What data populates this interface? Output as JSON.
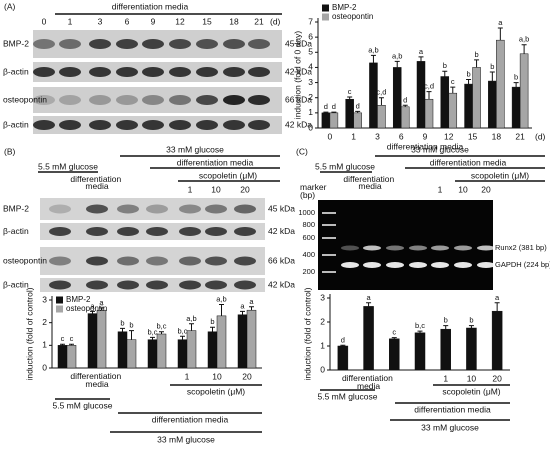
{
  "panel_a": {
    "label": "(A)",
    "header": "differentiation media",
    "lanes": [
      "0",
      "1",
      "3",
      "6",
      "9",
      "12",
      "15",
      "18",
      "21"
    ],
    "lane_unit": "(d)",
    "rows": [
      {
        "name": "BMP-2",
        "size": "45 kDa"
      },
      {
        "name": "β-actin",
        "size": "42 kDa"
      },
      {
        "name": "osteopontin",
        "size": "66 kDa"
      },
      {
        "name": "β-actin",
        "size": "42 kDa"
      }
    ]
  },
  "panel_b": {
    "label": "(B)",
    "headers": [
      "33 mM glucose",
      "5.5 mM glucose",
      "differentiation media",
      "scopoletin (μM)",
      "differentiation media",
      "1",
      "10",
      "20"
    ],
    "rows": [
      {
        "name": "BMP-2",
        "size": "45 kDa"
      },
      {
        "name": "β-actin",
        "size": "42 kDa"
      },
      {
        "name": "osteopontin",
        "size": "66 kDa"
      },
      {
        "name": "β-actin",
        "size": "42 kDa"
      }
    ]
  },
  "panel_c": {
    "label": "(C)",
    "headers": [
      "33 mM glucose",
      "5.5 mM glucose",
      "differentiation media",
      "scopoletin (μM)",
      "differentiation media",
      "1",
      "10",
      "20"
    ],
    "marker": "marker (bp)",
    "ladder": [
      "1000",
      "800",
      "600",
      "400",
      "200"
    ],
    "bands": [
      "Runx2 (381 bp)",
      "GAPDH (224 bp)"
    ]
  },
  "chart_data": [
    {
      "type": "bar",
      "ylabel": "induction (fold of 0 day)",
      "xlabel": "differentiation media",
      "x_unit": "(d)",
      "categories": [
        "0",
        "1",
        "3",
        "6",
        "9",
        "12",
        "15",
        "18",
        "21"
      ],
      "series": [
        {
          "name": "BMP-2",
          "color": "#111111",
          "values": [
            1,
            1.9,
            4.3,
            4.0,
            4.4,
            3.4,
            2.9,
            3.1,
            2.7
          ],
          "errors": [
            0.05,
            0.15,
            0.5,
            0.4,
            0.3,
            0.35,
            0.3,
            0.6,
            0.3
          ],
          "letters": [
            "d",
            "c",
            "a,b",
            "a,b",
            "a",
            "b",
            "b",
            "b",
            "b"
          ]
        },
        {
          "name": "osteopontin",
          "color": "#a6a6a6",
          "values": [
            1,
            1.0,
            1.5,
            1.4,
            1.9,
            2.3,
            4.0,
            5.8,
            4.9
          ],
          "errors": [
            0.05,
            0.1,
            0.5,
            0.1,
            0.5,
            0.4,
            0.5,
            0.8,
            0.6
          ],
          "letters": [
            "d",
            "d",
            "c,d",
            "d",
            "c,d",
            "c",
            "b",
            "a",
            "a,b"
          ]
        }
      ],
      "ylim": [
        0,
        7
      ],
      "yticks": [
        0,
        1,
        2,
        3,
        4,
        5,
        6,
        7
      ],
      "legend": "upper left"
    },
    {
      "type": "bar",
      "ylabel": "induction (fold of control)",
      "categories": [
        null,
        "differentiation media",
        null,
        null,
        "1",
        "10",
        "20"
      ],
      "series": [
        {
          "name": "BMP-2",
          "color": "#111111",
          "values": [
            1,
            2.4,
            1.6,
            1.25,
            1.25,
            1.6,
            2.35
          ],
          "errors": [
            0.05,
            0.1,
            0.15,
            0.1,
            0.15,
            0.2,
            0.15
          ],
          "letters": [
            "c",
            "a",
            "b",
            "b,c",
            "b,c",
            "b",
            "a"
          ]
        },
        {
          "name": "osteopontin",
          "color": "#a6a6a6",
          "values": [
            1,
            2.55,
            1.25,
            1.5,
            1.65,
            2.3,
            2.55
          ],
          "errors": [
            0.05,
            0.1,
            0.4,
            0.1,
            0.3,
            0.5,
            0.15
          ],
          "letters": [
            "c",
            "a",
            "b",
            "b,c",
            "a,b",
            "a,b",
            "a"
          ]
        }
      ],
      "group_labels": [
        "scopoletin (μM)",
        "5.5 mM glucose",
        "differentiation media",
        "33 mM glucose"
      ],
      "ylim": [
        0,
        3
      ],
      "yticks": [
        0,
        1,
        2,
        3
      ],
      "legend": "upper left"
    },
    {
      "type": "bar",
      "ylabel": "induction (fold of control)",
      "categories": [
        null,
        "differentiation media",
        null,
        null,
        "1",
        "10",
        "20"
      ],
      "series": [
        {
          "color": "#111111",
          "values": [
            1,
            2.65,
            1.3,
            1.55,
            1.7,
            1.75,
            2.45
          ],
          "errors": [
            0.03,
            0.15,
            0.05,
            0.07,
            0.15,
            0.1,
            0.35
          ],
          "letters": [
            "d",
            "a",
            "c",
            "b,c",
            "b",
            "b",
            "a"
          ]
        }
      ],
      "group_labels": [
        "scopoletin (μM)",
        "5.5 mM glucose",
        "differentiation media",
        "33 mM glucose"
      ],
      "ylim": [
        0,
        3
      ],
      "yticks": [
        0,
        1,
        2,
        3
      ]
    }
  ]
}
